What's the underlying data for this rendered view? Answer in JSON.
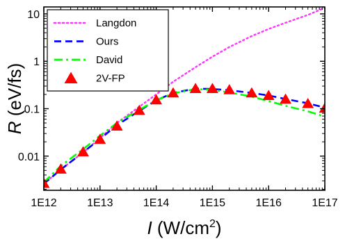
{
  "chart_data": {
    "type": "line",
    "xlabel_var": "I",
    "xlabel_unit_pre": " (W/cm",
    "xlabel_unit_sup": "2",
    "xlabel_unit_post": ")",
    "ylabel_var": "R",
    "ylabel_unit": " (eV/fs)",
    "x_scale": "log",
    "y_scale": "log",
    "xlim": [
      1000000000000.0,
      1e+17
    ],
    "ylim": [
      0.0019,
      14
    ],
    "grid": false,
    "legend_position": "top-left",
    "x_ticks": [
      {
        "value": 1000000000000.0,
        "label": "1E12"
      },
      {
        "value": 10000000000000.0,
        "label": "1E13"
      },
      {
        "value": 100000000000000.0,
        "label": "1E14"
      },
      {
        "value": 1000000000000000.0,
        "label": "1E15"
      },
      {
        "value": 1e+16,
        "label": "1E16"
      },
      {
        "value": 1e+17,
        "label": "1E17"
      }
    ],
    "y_ticks": [
      {
        "value": 0.01,
        "label": "0.01"
      },
      {
        "value": 0.1,
        "label": "0.1"
      },
      {
        "value": 1,
        "label": "1"
      },
      {
        "value": 10,
        "label": "10"
      }
    ],
    "series": [
      {
        "name": "Langdon",
        "color": "#ff33ff",
        "style": "dotted",
        "marker": "none",
        "x": [
          1000000000000.0,
          2000000000000.0,
          5000000000000.0,
          10000000000000.0,
          20000000000000.0,
          50000000000000.0,
          100000000000000.0,
          200000000000000.0,
          500000000000000.0,
          1000000000000000.0,
          2000000000000000.0,
          5000000000000000.0,
          1e+16,
          2e+16,
          5e+16,
          1e+17
        ],
        "y": [
          0.0026,
          0.0052,
          0.012,
          0.024,
          0.05,
          0.11,
          0.2,
          0.37,
          0.75,
          1.25,
          2.0,
          3.4,
          4.8,
          6.5,
          9.5,
          13.5
        ]
      },
      {
        "name": "Ours",
        "color": "#0000ff",
        "style": "dashed",
        "marker": "none",
        "x": [
          1000000000000.0,
          2000000000000.0,
          5000000000000.0,
          10000000000000.0,
          20000000000000.0,
          50000000000000.0,
          100000000000000.0,
          200000000000000.0,
          500000000000000.0,
          1000000000000000.0,
          2000000000000000.0,
          5000000000000000.0,
          1e+16,
          2e+16,
          5e+16,
          1e+17
        ],
        "y": [
          0.0026,
          0.0052,
          0.012,
          0.023,
          0.045,
          0.09,
          0.15,
          0.215,
          0.265,
          0.26,
          0.245,
          0.215,
          0.19,
          0.16,
          0.13,
          0.105
        ]
      },
      {
        "name": "David",
        "color": "#00ff00",
        "style": "dash-dot",
        "marker": "none",
        "x": [
          1000000000000.0,
          2000000000000.0,
          5000000000000.0,
          10000000000000.0,
          20000000000000.0,
          50000000000000.0,
          100000000000000.0,
          200000000000000.0,
          500000000000000.0,
          1000000000000000.0,
          2000000000000000.0,
          5000000000000000.0,
          1e+16,
          2e+16,
          5e+16,
          1e+17
        ],
        "y": [
          0.0028,
          0.0062,
          0.014,
          0.027,
          0.05,
          0.095,
          0.15,
          0.21,
          0.26,
          0.25,
          0.22,
          0.18,
          0.145,
          0.115,
          0.088,
          0.068
        ]
      },
      {
        "name": "2V-FP",
        "color": "#ff0000",
        "style": "none",
        "marker": "triangle",
        "x": [
          1000000000000.0,
          2000000000000.0,
          5000000000000.0,
          10000000000000.0,
          20000000000000.0,
          50000000000000.0,
          100000000000000.0,
          200000000000000.0,
          500000000000000.0,
          1000000000000000.0,
          2000000000000000.0,
          5000000000000000.0,
          1e+16,
          2e+16,
          5e+16,
          1e+17
        ],
        "y": [
          0.0026,
          0.0052,
          0.012,
          0.022,
          0.042,
          0.09,
          0.15,
          0.21,
          0.26,
          0.26,
          0.245,
          0.21,
          0.185,
          0.155,
          0.125,
          0.1
        ]
      }
    ]
  }
}
